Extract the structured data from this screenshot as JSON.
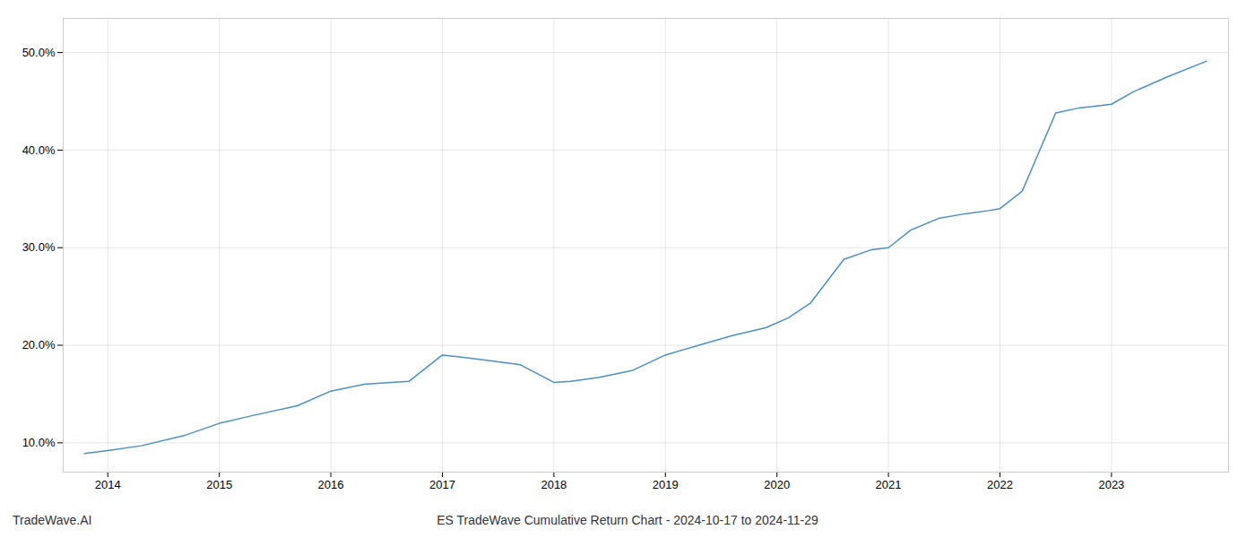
{
  "chart_data": {
    "type": "line",
    "title": "ES TradeWave Cumulative Return Chart - 2024-10-17 to 2024-11-29",
    "annotations": [
      "TradeWave.AI"
    ],
    "x": [
      2013.79,
      2014.0,
      2014.3,
      2014.7,
      2015.0,
      2015.3,
      2015.7,
      2016.0,
      2016.3,
      2016.7,
      2017.0,
      2017.3,
      2017.5,
      2017.7,
      2018.0,
      2018.15,
      2018.4,
      2018.7,
      2019.0,
      2019.3,
      2019.6,
      2019.9,
      2020.1,
      2020.3,
      2020.6,
      2020.85,
      2021.0,
      2021.2,
      2021.45,
      2021.7,
      2021.9,
      2022.0,
      2022.2,
      2022.5,
      2022.7,
      2022.85,
      2023.0,
      2023.2,
      2023.5,
      2023.85
    ],
    "values": [
      0.089,
      0.092,
      0.097,
      0.108,
      0.12,
      0.128,
      0.138,
      0.153,
      0.16,
      0.163,
      0.19,
      0.186,
      0.183,
      0.18,
      0.162,
      0.163,
      0.167,
      0.174,
      0.19,
      0.2,
      0.21,
      0.218,
      0.228,
      0.243,
      0.288,
      0.298,
      0.3,
      0.318,
      0.33,
      0.335,
      0.338,
      0.34,
      0.358,
      0.438,
      0.443,
      0.445,
      0.447,
      0.46,
      0.475,
      0.491
    ],
    "color": "#4a90c4",
    "xlim": [
      2013.6,
      2024.05
    ],
    "ylim": [
      0.07,
      0.535
    ],
    "xticks": [
      2014,
      2015,
      2016,
      2017,
      2018,
      2019,
      2020,
      2021,
      2022,
      2023
    ],
    "yticks": [
      {
        "value": 0.1,
        "label": "10.0%"
      },
      {
        "value": 0.2,
        "label": "20.0%"
      },
      {
        "value": 0.3,
        "label": "30.0%"
      },
      {
        "value": 0.4,
        "label": "40.0%"
      },
      {
        "value": 0.5,
        "label": "50.0%"
      }
    ],
    "grid": true
  }
}
